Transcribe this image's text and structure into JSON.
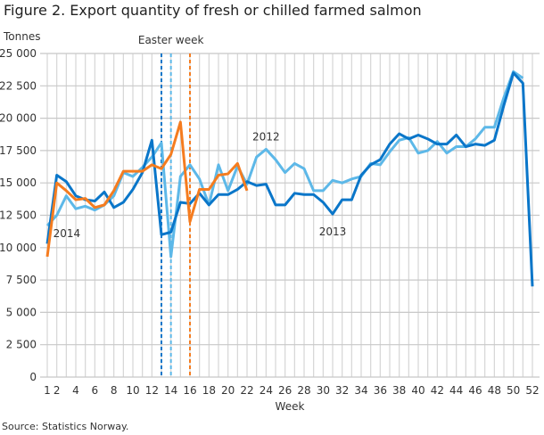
{
  "chart_data": {
    "type": "line",
    "title": "Figure 2. Export quantity of fresh or chilled farmed salmon",
    "ylabel": "Tonnes",
    "xlabel": "Week",
    "source": "Source: Statistics Norway.",
    "ylim": [
      0,
      25000
    ],
    "yticks": [
      0,
      2500,
      5000,
      7500,
      10000,
      12500,
      15000,
      17500,
      20000,
      22500,
      25000
    ],
    "ytick_labels": [
      "0",
      "2 500",
      "5 000",
      "7 500",
      "10 000",
      "12 500",
      "15 000",
      "17 500",
      "20 000",
      "22 500",
      "25 000"
    ],
    "xlim": [
      1,
      52
    ],
    "xticks": [
      1,
      2,
      4,
      6,
      8,
      10,
      12,
      14,
      16,
      18,
      20,
      22,
      24,
      26,
      28,
      30,
      32,
      34,
      36,
      38,
      40,
      42,
      44,
      46,
      48,
      50,
      52
    ],
    "grid": true,
    "annotation": "Easter week",
    "series": [
      {
        "name": "2012",
        "color": "#5db8e8",
        "easter_week": 14,
        "label_week": 24,
        "values": [
          11700,
          12500,
          14000,
          13000,
          13200,
          12900,
          13300,
          14000,
          15800,
          15500,
          16200,
          17000,
          18100,
          9300,
          15500,
          16400,
          15300,
          13300,
          16400,
          14400,
          16300,
          14900,
          17000,
          17600,
          16800,
          15800,
          16500,
          16100,
          14400,
          14400,
          15200,
          15000,
          15300,
          15500,
          16500,
          16400,
          17400,
          18300,
          18500,
          17300,
          17500,
          18200,
          17300,
          17800,
          17800,
          18400,
          19300,
          19300,
          21600,
          23600,
          23100
        ]
      },
      {
        "name": "2013",
        "color": "#0a76c9",
        "easter_week": 13,
        "label_week": 31,
        "values": [
          10300,
          15600,
          15100,
          14000,
          13700,
          13600,
          14300,
          13100,
          13500,
          14500,
          15800,
          18300,
          11000,
          11200,
          13500,
          13400,
          14200,
          13300,
          14100,
          14100,
          14500,
          15100,
          14800,
          14900,
          13300,
          13300,
          14200,
          14100,
          14100,
          13500,
          12600,
          13700,
          13700,
          15600,
          16400,
          16800,
          18000,
          18800,
          18400,
          18700,
          18400,
          18000,
          18000,
          18700,
          17800,
          18000,
          17900,
          18300,
          21000,
          23500,
          22700,
          7000
        ]
      },
      {
        "name": "2014",
        "color": "#f57c1f",
        "easter_week": 16,
        "label_week": 2,
        "values": [
          9300,
          15000,
          14400,
          13700,
          13800,
          13100,
          13300,
          14400,
          15900,
          15900,
          15900,
          16400,
          16100,
          17200,
          19700,
          12000,
          14500,
          14500,
          15600,
          15700,
          16500,
          14400
        ]
      }
    ]
  }
}
